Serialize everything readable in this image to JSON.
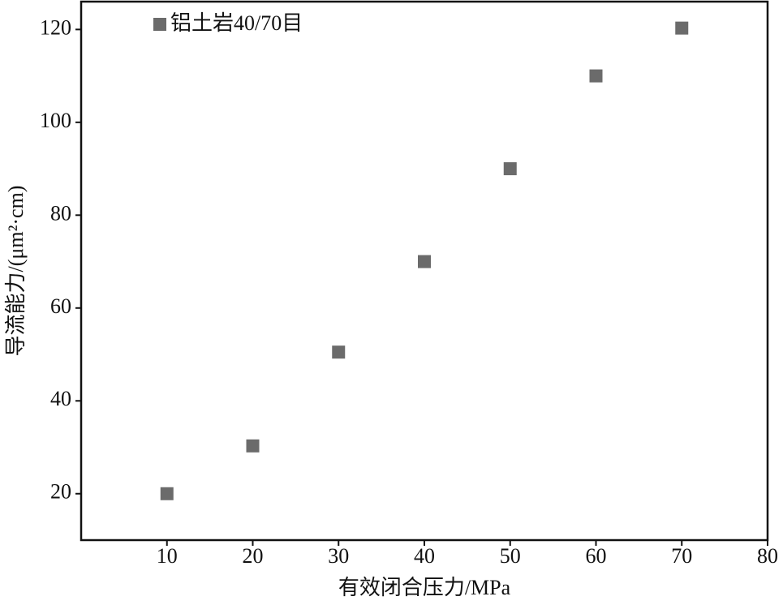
{
  "chart_data": {
    "type": "scatter",
    "x_label": "有效闭合压力/MPa",
    "y_label": "导流能力/(μm²·cm)",
    "series": [
      {
        "name": "铝土岩40/70目",
        "color": "#6b6b6b",
        "x": [
          10,
          20,
          30,
          40,
          50,
          60,
          70
        ],
        "values": [
          20,
          30.3,
          50.5,
          70,
          90,
          110,
          120.3
        ]
      }
    ],
    "xlim": [
      0,
      80
    ],
    "xticks": [
      10,
      20,
      30,
      40,
      50,
      60,
      70,
      80
    ],
    "ylim": [
      10,
      126
    ],
    "yticks": [
      20,
      40,
      60,
      80,
      100,
      120
    ],
    "legend": "top-left"
  }
}
